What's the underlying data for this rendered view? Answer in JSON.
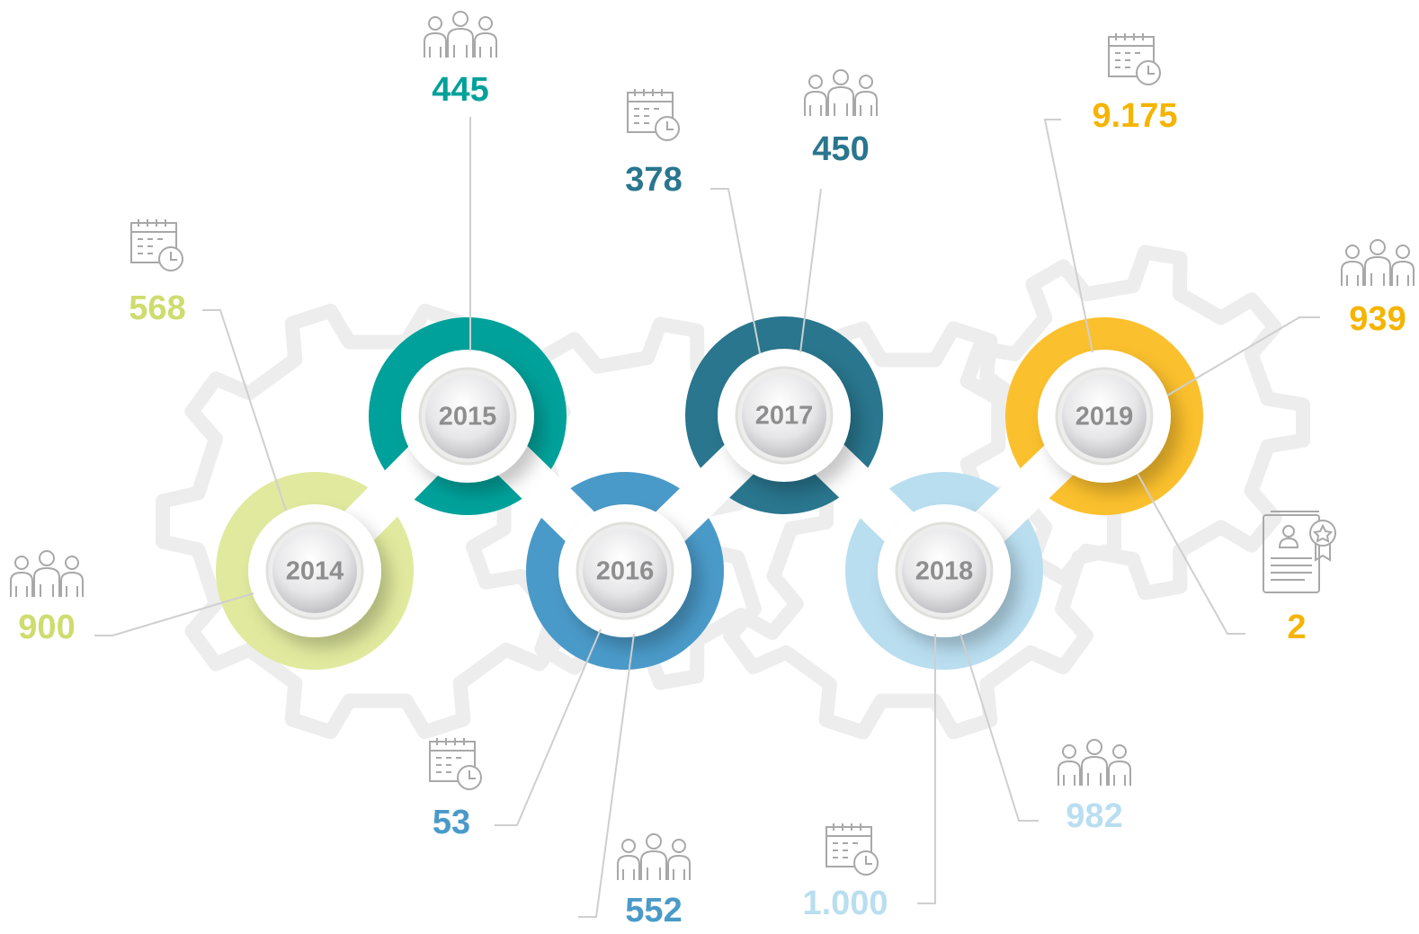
{
  "nodes": [
    {
      "year": "2014",
      "color": "#e1e99e",
      "text_color": "#cfdc6e",
      "callouts": [
        {
          "icon": "calendar",
          "value": "568"
        },
        {
          "icon": "people",
          "value": "900"
        }
      ]
    },
    {
      "year": "2015",
      "color": "#00a19a",
      "text_color": "#00a19a",
      "callouts": [
        {
          "icon": "people",
          "value": "445"
        }
      ]
    },
    {
      "year": "2016",
      "color": "#4a9ac9",
      "text_color": "#4a9ac9",
      "callouts": [
        {
          "icon": "calendar",
          "value": "53"
        },
        {
          "icon": "people",
          "value": "552"
        }
      ]
    },
    {
      "year": "2017",
      "color": "#29768e",
      "text_color": "#29768e",
      "callouts": [
        {
          "icon": "calendar",
          "value": "378"
        },
        {
          "icon": "people",
          "value": "450"
        }
      ]
    },
    {
      "year": "2018",
      "color": "#b9def0",
      "text_color": "#b9def0",
      "callouts": [
        {
          "icon": "calendar",
          "value": "1.000"
        },
        {
          "icon": "people",
          "value": "982"
        }
      ]
    },
    {
      "year": "2019",
      "color": "#fbc02d",
      "text_color": "#f5b400",
      "callouts": [
        {
          "icon": "calendar",
          "value": "9.175"
        },
        {
          "icon": "people",
          "value": "939"
        },
        {
          "icon": "certificate",
          "value": "2"
        }
      ]
    }
  ]
}
